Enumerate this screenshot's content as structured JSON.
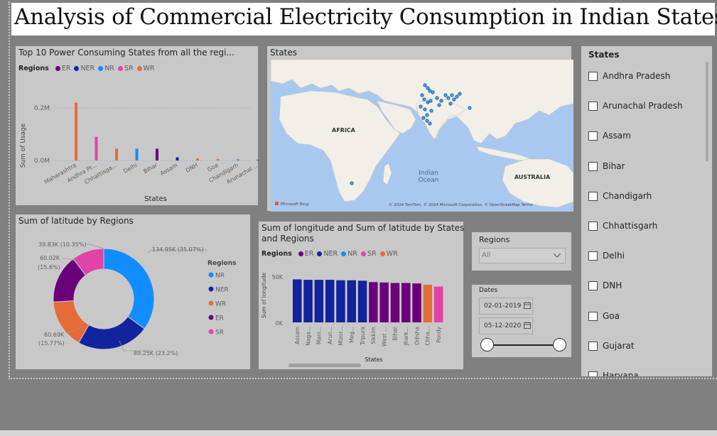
{
  "report_title": "Analysis of Commercial Electricity Consumption in Indian States",
  "colors": {
    "ER": "#6b007b",
    "NER": "#12239e",
    "NR": "#118dff",
    "SR": "#e044a7",
    "WR": "#e66c37"
  },
  "regions_legend": {
    "title": "Regions",
    "items": [
      "ER",
      "NER",
      "NR",
      "SR",
      "WR"
    ]
  },
  "top10": {
    "title": "Top 10 Power Consuming States from all the regi...",
    "ylabel": "Sum of Usage",
    "xlabel": "States",
    "yticks": [
      "0.2M",
      "0.0M"
    ]
  },
  "map": {
    "title": "States",
    "labels": {
      "africa": "AFRICA",
      "ocean1": "Indian",
      "ocean2": "Ocean",
      "australia": "AUSTRALIA"
    },
    "attribution": "© 2024 TomTom, © 2024 Microsoft Corporation, © OpenStreetMap  Terms",
    "bing": "Microsoft Bing"
  },
  "donut": {
    "title": "Sum of latitude by Regions",
    "legend_title": "Regions",
    "legend": [
      "NR",
      "NER",
      "WR",
      "ER",
      "SR"
    ],
    "labels": {
      "nr": "134.95K (35.07%)",
      "ner": "89.25K (23.2%)",
      "wr1": "60.69K",
      "wr2": "(15.77%)",
      "er1": "60.02K",
      "er2": "(15.6%)",
      "sr": "39.83K (10.35%)"
    }
  },
  "longlat": {
    "title1": "Sum of longitude and Sum of latitude by States",
    "title2": "and Regions",
    "ylabel": "Sum of longitude",
    "xlabel": "States",
    "yticks": [
      "50K",
      "0K"
    ]
  },
  "regions_slicer": {
    "title": "Regions",
    "value": "All"
  },
  "dates_slicer": {
    "title": "Dates",
    "start": "02-01-2019",
    "end": "05-12-2020"
  },
  "states_slicer": {
    "title": "States",
    "items": [
      "Andhra Pradesh",
      "Arunachal Pradesh",
      "Assam",
      "Bihar",
      "Chandigarh",
      "Chhattisgarh",
      "Delhi",
      "DNH",
      "Goa",
      "Gujarat",
      "Haryana"
    ]
  },
  "chart_data": [
    {
      "type": "bar",
      "title": "Top 10 Power Consuming States from all the regi...",
      "xlabel": "States",
      "ylabel": "Sum of Usage",
      "ylim": [
        0,
        0.25
      ],
      "categories": [
        "Maharashtra",
        "Andhra Pr...",
        "Chhattisga...",
        "Delhi",
        "Bihar",
        "Assam",
        "DNH",
        "Goa",
        "Chandigarh",
        "Arunachal ..."
      ],
      "series": [
        {
          "name": "ER",
          "values": [
            0,
            0,
            0,
            0,
            0.045,
            0,
            0,
            0,
            0,
            0
          ]
        },
        {
          "name": "NER",
          "values": [
            0,
            0,
            0,
            0,
            0,
            0.012,
            0,
            0,
            0,
            0.003
          ]
        },
        {
          "name": "NR",
          "values": [
            0,
            0,
            0,
            0.045,
            0,
            0,
            0,
            0,
            0.004,
            0
          ]
        },
        {
          "name": "SR",
          "values": [
            0,
            0.09,
            0,
            0,
            0,
            0,
            0,
            0,
            0,
            0
          ]
        },
        {
          "name": "WR",
          "values": [
            0.22,
            0,
            0.045,
            0,
            0,
            0,
            0.008,
            0.005,
            0,
            0
          ]
        }
      ],
      "grid": false,
      "legend": "top-left"
    },
    {
      "type": "pie",
      "title": "Sum of latitude by Regions",
      "categories": [
        "NR",
        "NER",
        "WR",
        "ER",
        "SR"
      ],
      "values": [
        134.95,
        89.25,
        60.69,
        60.02,
        39.83
      ],
      "legend": "right"
    },
    {
      "type": "bar",
      "title": "Sum of longitude and Sum of latitude by States and Regions",
      "xlabel": "States",
      "ylabel": "Sum of longitude",
      "ylim": [
        0,
        65
      ],
      "categories": [
        "Assam",
        "Naga...",
        "Mani...",
        "Arun...",
        "Mizor...",
        "Meg...",
        "Tripura",
        "Sikkim",
        "West ...",
        "Bihar",
        "Jhark...",
        "Odisha",
        "Chha...",
        "Pondy"
      ],
      "values": [
        48,
        47.5,
        47.5,
        47.5,
        47,
        47,
        46.5,
        45,
        44.5,
        44,
        44,
        43.5,
        42,
        40
      ],
      "regions": [
        "NER",
        "NER",
        "NER",
        "NER",
        "NER",
        "NER",
        "NER",
        "ER",
        "ER",
        "ER",
        "ER",
        "ER",
        "WR",
        "SR"
      ],
      "legend": "top-left"
    }
  ]
}
